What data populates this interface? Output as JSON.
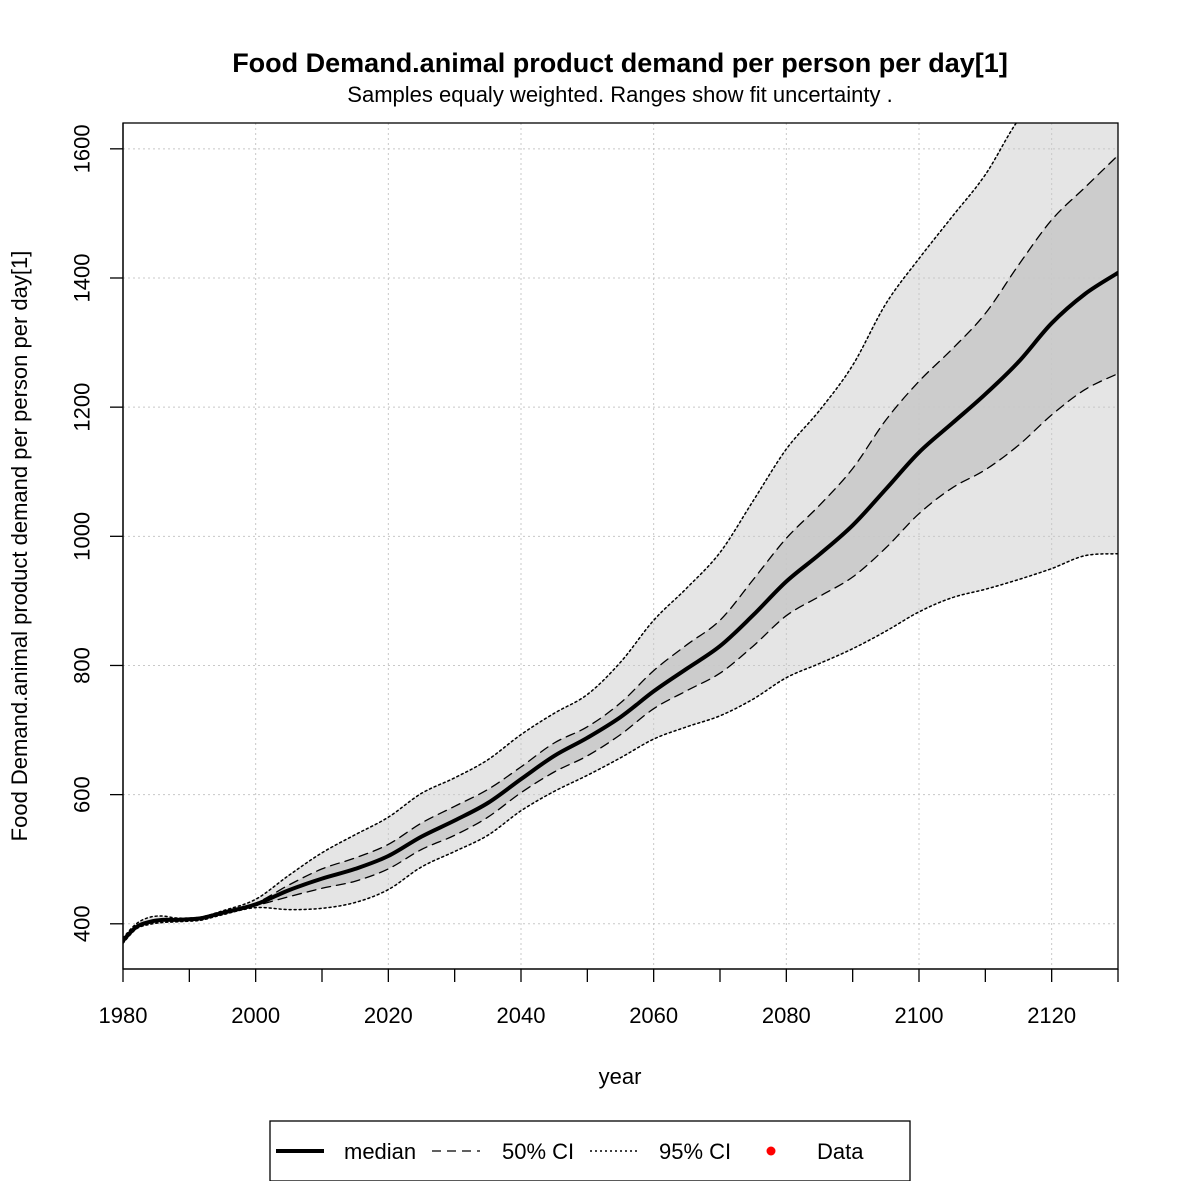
{
  "chart_data": {
    "type": "line",
    "title": "Food Demand.animal product demand per person per day[1]",
    "subtitle": "Samples equaly weighted. Ranges show  fit uncertainty .",
    "xlabel": "year",
    "ylabel": "Food Demand.animal product demand per person per day[1]",
    "xlim": [
      1980,
      2130
    ],
    "ylim": [
      330,
      1640
    ],
    "xticks": [
      1980,
      2000,
      2020,
      2040,
      2060,
      2080,
      2100,
      2120
    ],
    "xtick_minor": [
      1990,
      2010,
      2030,
      2050,
      2070,
      2090,
      2110,
      2130
    ],
    "yticks": [
      400,
      600,
      800,
      1000,
      1200,
      1400,
      1600
    ],
    "grid": true,
    "x": [
      1980,
      1982,
      1984,
      1986,
      1988,
      1990,
      1992,
      1995,
      2000,
      2005,
      2010,
      2015,
      2020,
      2025,
      2030,
      2035,
      2040,
      2045,
      2050,
      2055,
      2060,
      2065,
      2070,
      2075,
      2080,
      2085,
      2090,
      2095,
      2100,
      2105,
      2110,
      2115,
      2120,
      2125,
      2130
    ],
    "series": [
      {
        "name": "median",
        "style": "solid-thick",
        "values": [
          374,
          395,
          403,
          406,
          406,
          407,
          409,
          417,
          430,
          452,
          470,
          485,
          505,
          535,
          560,
          587,
          624,
          660,
          688,
          720,
          760,
          795,
          830,
          878,
          930,
          972,
          1017,
          1073,
          1130,
          1175,
          1220,
          1270,
          1330,
          1375,
          1408
        ]
      },
      {
        "name": "50% CI upper",
        "style": "dashed",
        "values": [
          376,
          396,
          404,
          407,
          407,
          408,
          410,
          418,
          432,
          460,
          485,
          502,
          523,
          556,
          582,
          608,
          643,
          680,
          705,
          742,
          792,
          832,
          870,
          933,
          997,
          1048,
          1105,
          1180,
          1240,
          1290,
          1345,
          1420,
          1490,
          1540,
          1590
        ]
      },
      {
        "name": "50% CI lower",
        "style": "dashed",
        "values": [
          372,
          394,
          402,
          405,
          405,
          406,
          408,
          416,
          428,
          442,
          455,
          466,
          485,
          515,
          537,
          565,
          603,
          635,
          660,
          693,
          733,
          761,
          788,
          830,
          877,
          907,
          937,
          982,
          1035,
          1075,
          1103,
          1141,
          1188,
          1227,
          1252
        ]
      },
      {
        "name": "95% CI upper",
        "style": "dotted",
        "values": [
          378,
          400,
          410,
          412,
          409,
          409,
          411,
          420,
          438,
          475,
          510,
          538,
          565,
          602,
          626,
          654,
          693,
          726,
          755,
          805,
          870,
          920,
          975,
          1055,
          1135,
          1195,
          1265,
          1360,
          1430,
          1495,
          1560,
          1645,
          1700,
          1700,
          1700
        ]
      },
      {
        "name": "95% CI lower",
        "style": "dotted",
        "values": [
          370,
          392,
          399,
          402,
          403,
          404,
          406,
          414,
          425,
          422,
          424,
          433,
          453,
          488,
          512,
          537,
          575,
          605,
          630,
          657,
          686,
          705,
          722,
          748,
          781,
          803,
          826,
          853,
          883,
          905,
          918,
          933,
          950,
          970,
          973
        ]
      }
    ],
    "fill_50": "#cccccc",
    "fill_95": "#e5e5e5",
    "legend": {
      "position": "bottom-center",
      "entries": [
        {
          "label": "median",
          "style": "solid-thick",
          "color": "#000000"
        },
        {
          "label": "50% CI",
          "style": "dashed",
          "color": "#000000"
        },
        {
          "label": "95% CI",
          "style": "dotted",
          "color": "#000000"
        },
        {
          "label": "Data",
          "style": "point",
          "color": "#ff0000"
        }
      ]
    }
  }
}
